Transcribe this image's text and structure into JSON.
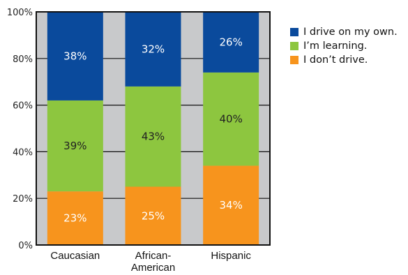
{
  "chart_data": {
    "type": "bar",
    "stacked": true,
    "percent_scale": true,
    "categories": [
      "Caucasian",
      "African-\nAmerican",
      "Hispanic"
    ],
    "series": [
      {
        "name": "I don’t drive.",
        "values": [
          23,
          25,
          34
        ],
        "labels": [
          "23%",
          "25%",
          "34%"
        ],
        "color": "#f7941d",
        "label_color": "#ffffff"
      },
      {
        "name": "I’m learning.",
        "values": [
          39,
          43,
          40
        ],
        "labels": [
          "39%",
          "43%",
          "40%"
        ],
        "color": "#8dc63f",
        "label_color": "#222222"
      },
      {
        "name": "I drive on my own.",
        "values": [
          38,
          32,
          26
        ],
        "labels": [
          "38%",
          "32%",
          "26%"
        ],
        "color": "#0a4a9c",
        "label_color": "#ffffff"
      }
    ],
    "legend_order": [
      "I drive on my own.",
      "I’m learning.",
      "I don’t drive."
    ],
    "legend_position": "right",
    "ylim": [
      0,
      100
    ],
    "yticks": [
      0,
      20,
      40,
      60,
      80,
      100
    ],
    "ytick_labels": [
      "0%",
      "20%",
      "40%",
      "60%",
      "80%",
      "100%"
    ],
    "grid": true,
    "background_color": "#c8c9cb",
    "xlabel": "",
    "ylabel": "",
    "title": ""
  }
}
